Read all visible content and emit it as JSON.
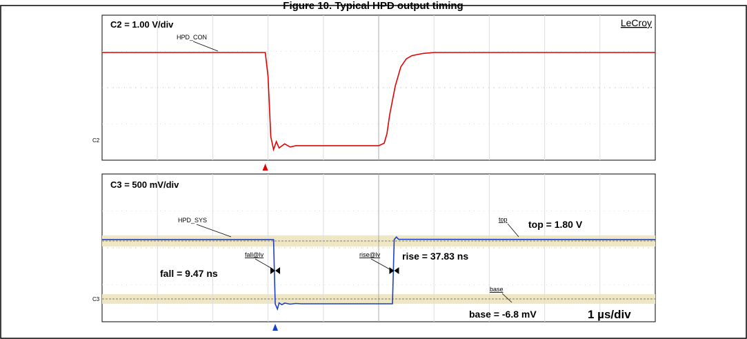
{
  "figure_title": "Figure 10.  Typical HPD output timing",
  "brand": "LeCroy",
  "timebase": "1 µs/div",
  "chart_data": [
    {
      "type": "line",
      "scale_label": "C2 = 1.00 V/div",
      "channel_marker": "C2",
      "series": [
        {
          "name": "HPD_CON",
          "color": "#e00000",
          "t_div": [
            0,
            2.95,
            3.0,
            3.05,
            3.1,
            3.15,
            3.2,
            3.3,
            3.4,
            3.5,
            3.7,
            4.0,
            5.0,
            5.1,
            5.15,
            5.2,
            5.3,
            5.4,
            5.5,
            5.6,
            5.8,
            6.0,
            10
          ],
          "level_div": [
            2.95,
            2.95,
            2.2,
            0.3,
            -0.1,
            0.15,
            -0.05,
            0.08,
            -0.02,
            0.02,
            0.02,
            0.02,
            0.02,
            0.1,
            0.4,
            1.0,
            1.9,
            2.5,
            2.75,
            2.85,
            2.92,
            2.95,
            2.95
          ]
        }
      ],
      "trigger_t_div": 2.95,
      "series_label": "HPD_CON"
    },
    {
      "type": "line",
      "scale_label": "C3 = 500 mV/div",
      "channel_marker": "C3",
      "series": [
        {
          "name": "HPD_SYS",
          "color": "#1a3fc8",
          "t_div": [
            0,
            3.1,
            3.13,
            3.17,
            3.2,
            3.25,
            3.3,
            3.4,
            3.5,
            3.6,
            3.8,
            5.2,
            5.25,
            5.28,
            5.32,
            5.36,
            10
          ],
          "level_div": [
            3.6,
            3.6,
            0.0,
            -0.3,
            0.05,
            -0.05,
            0.04,
            -0.02,
            0.02,
            0.0,
            0.0,
            0.0,
            0.0,
            3.6,
            3.75,
            3.62,
            3.6
          ]
        }
      ],
      "top_level_div": 3.6,
      "base_level_div": 0.0,
      "series_label": "HPD_SYS",
      "annotations": {
        "fall_marker": "fall@lv",
        "rise_marker": "rise@lv",
        "top_marker": "top",
        "base_marker": "base",
        "fall": "fall = 9.47 ns",
        "rise": "rise =  37.83 ns",
        "top": "top = 1.80 V",
        "base": "base = -6.8 mV"
      },
      "trigger_t_div": 3.13
    }
  ]
}
